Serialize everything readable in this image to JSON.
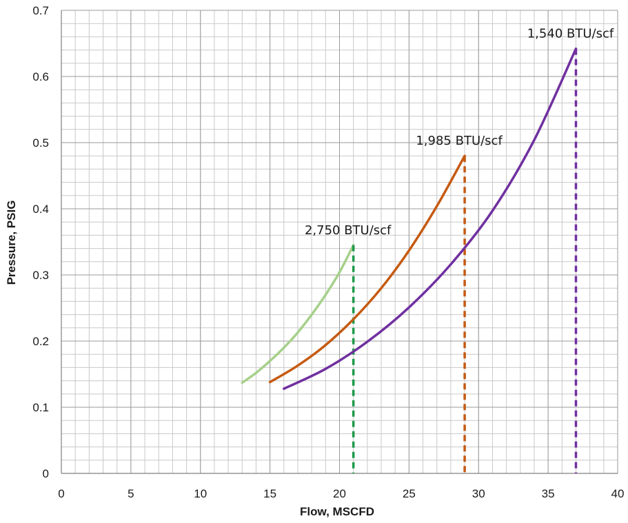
{
  "chart_data": {
    "type": "line",
    "xlabel": "Flow, MSCFD",
    "ylabel": "Pressure, PSIG",
    "xlim": [
      0,
      40
    ],
    "ylim": [
      0,
      0.7
    ],
    "x_ticks": [
      0,
      5,
      10,
      15,
      20,
      25,
      30,
      35,
      40
    ],
    "y_ticks": [
      0,
      0.1,
      0.2,
      0.3,
      0.4,
      0.5,
      0.6,
      0.7
    ],
    "x_tick_labels": [
      "0",
      "5",
      "10",
      "15",
      "20",
      "25",
      "30",
      "35",
      "40"
    ],
    "y_tick_labels": [
      "0",
      "0.1",
      "0.2",
      "0.3",
      "0.4",
      "0.5",
      "0.6",
      "0.7"
    ],
    "grid": true,
    "series": [
      {
        "name": "2,750 BTU/scf",
        "color": "#a6d08a",
        "drop_color": "#1e9a4a",
        "x": [
          13,
          14,
          15,
          16,
          17,
          18,
          19,
          20,
          21
        ],
        "y": [
          0.137,
          0.152,
          0.17,
          0.19,
          0.213,
          0.24,
          0.27,
          0.304,
          0.345
        ]
      },
      {
        "name": "1,985 BTU/scf",
        "color": "#c55a11",
        "drop_color": "#c55a11",
        "x": [
          15,
          17,
          19,
          21,
          23,
          25,
          27,
          29
        ],
        "y": [
          0.138,
          0.163,
          0.194,
          0.233,
          0.28,
          0.337,
          0.404,
          0.48
        ]
      },
      {
        "name": "1,540 BTU/scf",
        "color": "#7030a0",
        "drop_color": "#7030a0",
        "x": [
          16,
          19,
          22,
          25,
          28,
          31,
          34,
          37
        ],
        "y": [
          0.128,
          0.158,
          0.199,
          0.251,
          0.316,
          0.397,
          0.504,
          0.642
        ]
      }
    ],
    "annotations": [
      {
        "text": "2,750 BTU/scf",
        "x": 21,
        "y": 0.345
      },
      {
        "text": "1,985 BTU/scf",
        "x": 29,
        "y": 0.48
      },
      {
        "text": "1,540 BTU/scf",
        "x": 37,
        "y": 0.642
      }
    ]
  }
}
